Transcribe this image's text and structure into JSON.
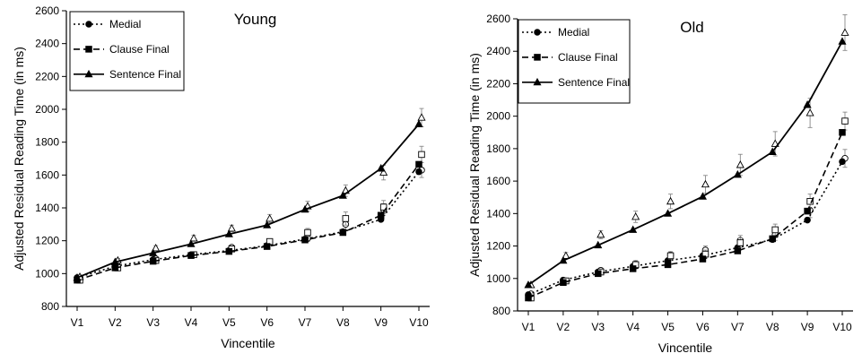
{
  "chart_data": [
    {
      "type": "line",
      "title": "Young",
      "xlabel": "Vincentile",
      "ylabel": "Adjusted Residual Reading Time (in ms)",
      "categories": [
        "V1",
        "V2",
        "V3",
        "V4",
        "V5",
        "V6",
        "V7",
        "V8",
        "V9",
        "V10"
      ],
      "ylim": [
        800,
        2600
      ],
      "yticks": [
        800,
        1000,
        1200,
        1400,
        1600,
        1800,
        2000,
        2200,
        2400,
        2600
      ],
      "grid": false,
      "legend_position": "top-left",
      "series": [
        {
          "name": "Medial",
          "marker": "circle",
          "line": "dotted",
          "values": [
            975,
            1045,
            1085,
            1115,
            1140,
            1170,
            1210,
            1255,
            1330,
            1620
          ],
          "observed": [
            975,
            1045,
            1090,
            1115,
            1160,
            1190,
            1215,
            1300,
            1390,
            1630
          ],
          "error": [
            10,
            10,
            10,
            12,
            12,
            15,
            20,
            40,
            35,
            45
          ]
        },
        {
          "name": "Clause Final",
          "marker": "square",
          "line": "dashed",
          "values": [
            960,
            1035,
            1075,
            1110,
            1135,
            1165,
            1205,
            1250,
            1355,
            1665
          ],
          "observed": [
            960,
            1035,
            1080,
            1115,
            1150,
            1195,
            1250,
            1335,
            1405,
            1725
          ],
          "error": [
            10,
            10,
            12,
            12,
            12,
            15,
            25,
            40,
            40,
            50
          ]
        },
        {
          "name": "Sentence Final",
          "marker": "triangle",
          "line": "solid",
          "values": [
            975,
            1070,
            1125,
            1180,
            1240,
            1295,
            1390,
            1475,
            1640,
            1910
          ],
          "observed": [
            980,
            1080,
            1155,
            1215,
            1275,
            1335,
            1410,
            1505,
            1615,
            1950
          ],
          "error": [
            10,
            12,
            15,
            18,
            20,
            25,
            30,
            35,
            45,
            55
          ]
        }
      ]
    },
    {
      "type": "line",
      "title": "Old",
      "xlabel": "Vincentile",
      "ylabel": "Adjusted Residual Reading Time (in ms)",
      "categories": [
        "V1",
        "V2",
        "V3",
        "V4",
        "V5",
        "V6",
        "V7",
        "V8",
        "V9",
        "V10"
      ],
      "ylim": [
        800,
        2600
      ],
      "yticks": [
        800,
        1000,
        1200,
        1400,
        1600,
        1800,
        2000,
        2200,
        2400,
        2600
      ],
      "grid": false,
      "legend_position": "top-left",
      "series": [
        {
          "name": "Medial",
          "marker": "circle",
          "line": "dotted",
          "values": [
            900,
            990,
            1040,
            1075,
            1110,
            1140,
            1190,
            1240,
            1360,
            1720
          ],
          "observed": [
            905,
            985,
            1050,
            1090,
            1145,
            1175,
            1235,
            1270,
            1420,
            1740
          ],
          "error": [
            15,
            15,
            15,
            20,
            20,
            25,
            30,
            35,
            45,
            55
          ]
        },
        {
          "name": "Clause Final",
          "marker": "square",
          "line": "dashed",
          "values": [
            880,
            975,
            1030,
            1060,
            1085,
            1120,
            1170,
            1245,
            1415,
            1900
          ],
          "observed": [
            880,
            985,
            1040,
            1085,
            1140,
            1150,
            1220,
            1300,
            1475,
            1970
          ],
          "error": [
            15,
            15,
            15,
            20,
            20,
            25,
            30,
            35,
            45,
            55
          ]
        },
        {
          "name": "Sentence Final",
          "marker": "triangle",
          "line": "solid",
          "values": [
            960,
            1110,
            1205,
            1300,
            1400,
            1505,
            1640,
            1780,
            2070,
            2460
          ],
          "observed": [
            960,
            1140,
            1270,
            1380,
            1475,
            1580,
            1700,
            1830,
            2020,
            2515
          ],
          "error": [
            15,
            20,
            25,
            35,
            45,
            55,
            65,
            75,
            90,
            110
          ]
        }
      ]
    }
  ]
}
